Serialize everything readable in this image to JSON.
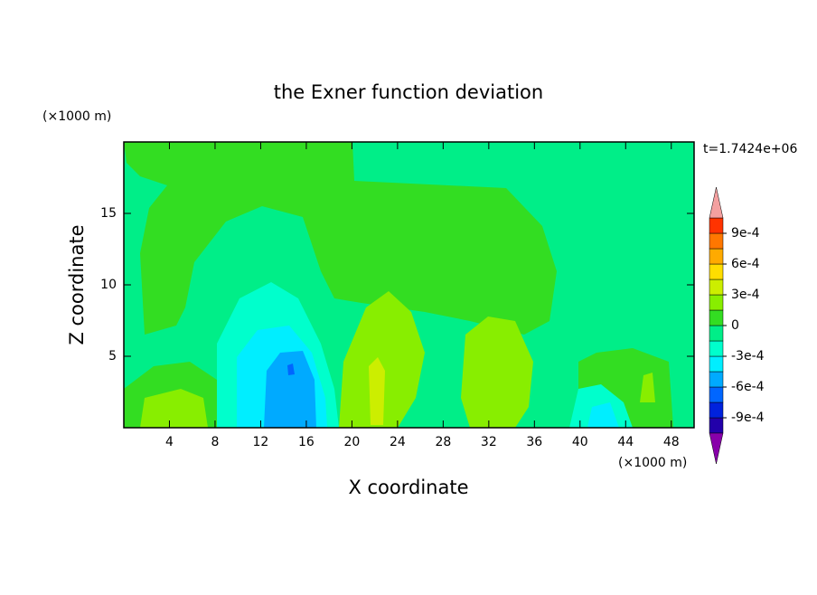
{
  "chart_data": {
    "type": "contour",
    "title": "the Exner function deviation",
    "x_label": "X coordinate",
    "y_label": "Z coordinate",
    "x_unit": "(×1000 m)",
    "y_unit": "(×1000 m)",
    "annotation": "t=1.7424e+06",
    "xlim": [
      0,
      50
    ],
    "ylim": [
      0,
      20
    ],
    "xticks": [
      4,
      8,
      12,
      16,
      20,
      24,
      28,
      32,
      36,
      40,
      44,
      48
    ],
    "yticks": [
      5,
      10,
      15
    ],
    "colorbar": {
      "levels": [
        -0.00105,
        -0.0009,
        -0.00075,
        -0.0006,
        -0.00045,
        -0.0003,
        -0.00015,
        0,
        0.00015,
        0.0003,
        0.00045,
        0.0006,
        0.00075,
        0.0009,
        0.00105
      ],
      "colors": [
        "#2200aa",
        "#0022dd",
        "#0066ff",
        "#00aaff",
        "#00eeff",
        "#00ffcc",
        "#00ee88",
        "#33dd22",
        "#88ee00",
        "#ccee00",
        "#ffdd00",
        "#ffaa00",
        "#ff7700",
        "#ff3300"
      ],
      "under_color": "#8800aa",
      "over_color": "#f4a0a0",
      "ticks": [
        {
          "value": -0.0009,
          "label": "-9e-4"
        },
        {
          "value": -0.0006,
          "label": "-6e-4"
        },
        {
          "value": -0.0003,
          "label": "-3e-4"
        },
        0,
        {
          "value": 0.0003,
          "label": "3e-4"
        },
        {
          "value": 0.0006,
          "label": "6e-4"
        },
        {
          "value": 0.0009,
          "label": "9e-4"
        }
      ]
    }
  }
}
